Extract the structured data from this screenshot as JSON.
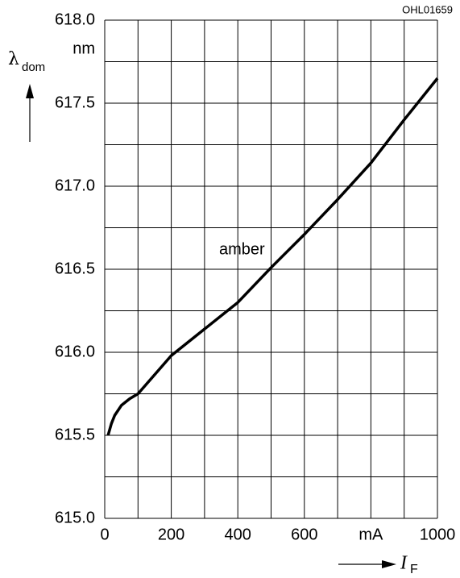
{
  "chart_data": {
    "type": "line",
    "code": "OHL01659",
    "y_label": {
      "symbol": "λ",
      "subscript": "dom"
    },
    "y_unit": "nm",
    "x_label": {
      "symbol": "I",
      "subscript": "F"
    },
    "annotation": "amber",
    "x": [
      10,
      20,
      30,
      50,
      75,
      100,
      200,
      300,
      400,
      500,
      600,
      700,
      800,
      900,
      1000
    ],
    "series": [
      {
        "name": "amber",
        "color": "#000000",
        "values": [
          615.5,
          615.57,
          615.62,
          615.68,
          615.72,
          615.75,
          615.98,
          616.14,
          616.3,
          616.51,
          616.71,
          616.92,
          617.14,
          617.4,
          617.65
        ]
      }
    ],
    "xlim": [
      0,
      1000
    ],
    "ylim": [
      615.0,
      618.0
    ],
    "xticks": [
      0,
      200,
      400,
      600,
      {
        "value": 800,
        "label": "mA"
      },
      1000
    ],
    "yticks": [
      {
        "value": 615,
        "label": "615.0"
      },
      615.5,
      {
        "value": 616,
        "label": "616.0"
      },
      616.5,
      {
        "value": 617,
        "label": "617.0"
      },
      617.5,
      {
        "value": 618,
        "label": "618.0"
      }
    ],
    "xgrid": [
      0,
      100,
      200,
      300,
      400,
      500,
      600,
      700,
      800,
      900,
      1000
    ],
    "ygrid": [
      615,
      615.25,
      615.5,
      615.75,
      616,
      616.25,
      616.5,
      616.75,
      617,
      617.25,
      617.5,
      617.75,
      618
    ],
    "grid": true
  }
}
